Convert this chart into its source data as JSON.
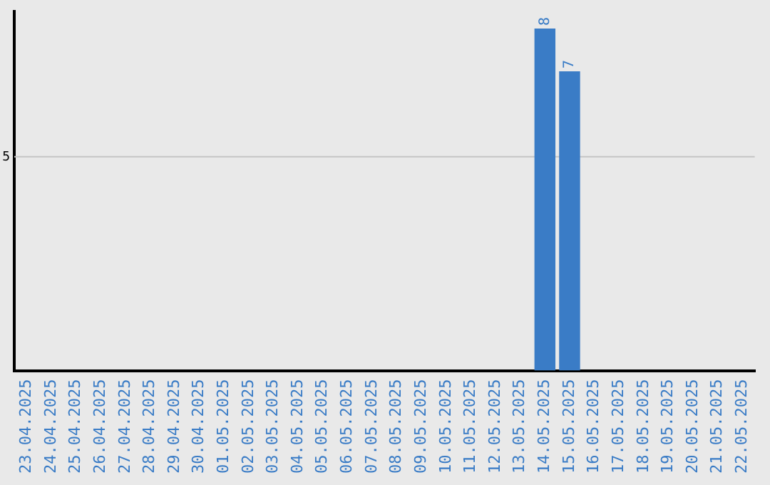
{
  "chart_data": {
    "type": "bar",
    "ylim": [
      0,
      8.4
    ],
    "categories": [
      "23.04.2025",
      "24.04.2025",
      "25.04.2025",
      "26.04.2025",
      "27.04.2025",
      "28.04.2025",
      "29.04.2025",
      "30.04.2025",
      "01.05.2025",
      "02.05.2025",
      "03.05.2025",
      "04.05.2025",
      "05.05.2025",
      "06.05.2025",
      "07.05.2025",
      "08.05.2025",
      "09.05.2025",
      "10.05.2025",
      "11.05.2025",
      "12.05.2025",
      "13.05.2025",
      "14.05.2025",
      "15.05.2025",
      "16.05.2025",
      "17.05.2025",
      "18.05.2025",
      "19.05.2025",
      "20.05.2025",
      "21.05.2025",
      "22.05.2025"
    ],
    "values": [
      null,
      null,
      null,
      null,
      null,
      null,
      null,
      null,
      null,
      null,
      null,
      null,
      null,
      null,
      null,
      null,
      null,
      null,
      null,
      null,
      null,
      8,
      7,
      null,
      null,
      null,
      null,
      null,
      null,
      null
    ],
    "value_labels": [
      null,
      null,
      null,
      null,
      null,
      null,
      null,
      null,
      null,
      null,
      null,
      null,
      null,
      null,
      null,
      null,
      null,
      null,
      null,
      null,
      null,
      "8",
      "7",
      null,
      null,
      null,
      null,
      null,
      null,
      null
    ],
    "color": "#3a7cc6",
    "ref_lines": [
      {
        "axis": "y",
        "value": 5,
        "label": "5",
        "color": "#c4c4c4"
      }
    ],
    "legend": false
  }
}
